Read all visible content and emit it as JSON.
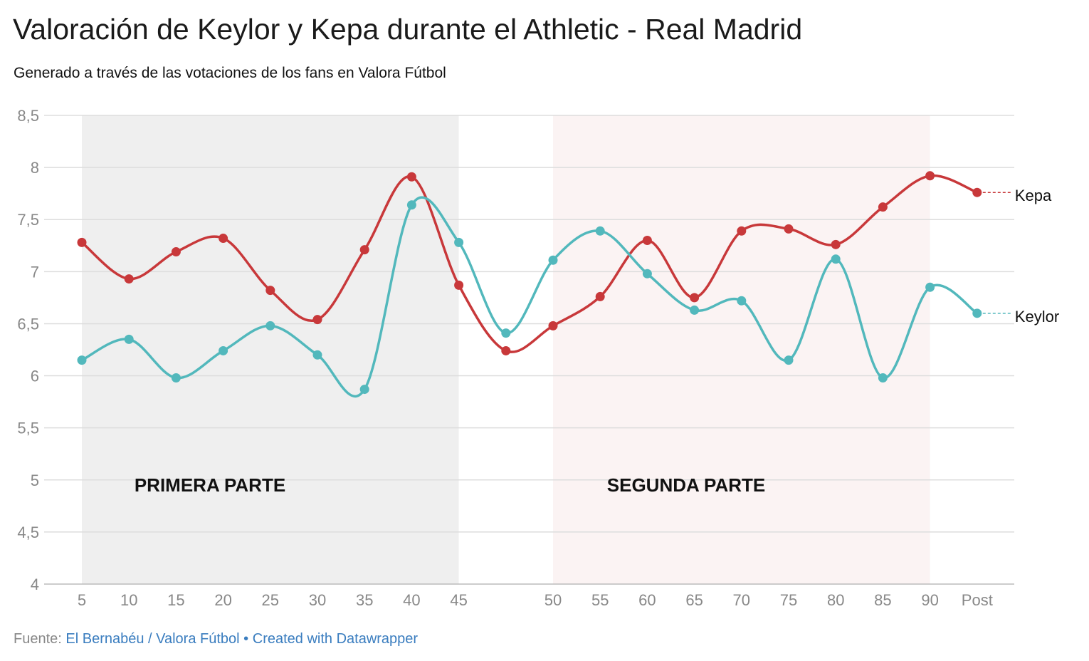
{
  "header": {
    "title": "Valoración de Keylor y Kepa durante el Athletic - Real Madrid",
    "subtitle": "Generado a través de las votaciones de los fans en Valora Fútbol"
  },
  "footer": {
    "source_label": "Fuente:",
    "source": "El Bernabéu / Valora Fútbol",
    "separator": "•",
    "credit": "Created with Datawrapper"
  },
  "chart_data": {
    "type": "line",
    "title": "Valoración de Keylor y Kepa durante el Athletic - Real Madrid",
    "subtitle": "Generado a través de las votaciones de los fans en Valora Fútbol",
    "xlabel": "",
    "ylabel": "",
    "ylim": [
      4,
      8.5
    ],
    "yticks": [
      "4",
      "4,5",
      "5",
      "5,5",
      "6",
      "6,5",
      "7",
      "7,5",
      "8",
      "8,5"
    ],
    "grid": true,
    "curve": "smooth",
    "categories": [
      "5",
      "10",
      "15",
      "20",
      "25",
      "30",
      "35",
      "40",
      "45",
      "",
      "50",
      "55",
      "60",
      "65",
      "70",
      "75",
      "80",
      "85",
      "90",
      "Post"
    ],
    "series": [
      {
        "name": "Kepa",
        "color": "#c8383a",
        "values": [
          7.28,
          6.93,
          7.19,
          7.32,
          6.82,
          6.54,
          7.21,
          7.91,
          6.87,
          6.24,
          6.48,
          6.76,
          7.3,
          6.75,
          7.39,
          7.41,
          7.26,
          7.62,
          7.92,
          7.76
        ]
      },
      {
        "name": "Keylor",
        "color": "#52b8bc",
        "values": [
          6.15,
          6.35,
          5.98,
          6.24,
          6.48,
          6.2,
          5.87,
          7.64,
          7.28,
          6.41,
          7.11,
          7.39,
          6.98,
          6.63,
          6.72,
          6.15,
          7.12,
          5.98,
          6.85,
          6.6
        ]
      }
    ],
    "ranges": [
      {
        "label": "PRIMERA PARTE",
        "from": "5",
        "to": "45",
        "color": "#efefef"
      },
      {
        "label": "SEGUNDA PARTE",
        "from": "50",
        "to": "90",
        "color": "#fbf3f3"
      }
    ],
    "legend": "inline-right"
  }
}
